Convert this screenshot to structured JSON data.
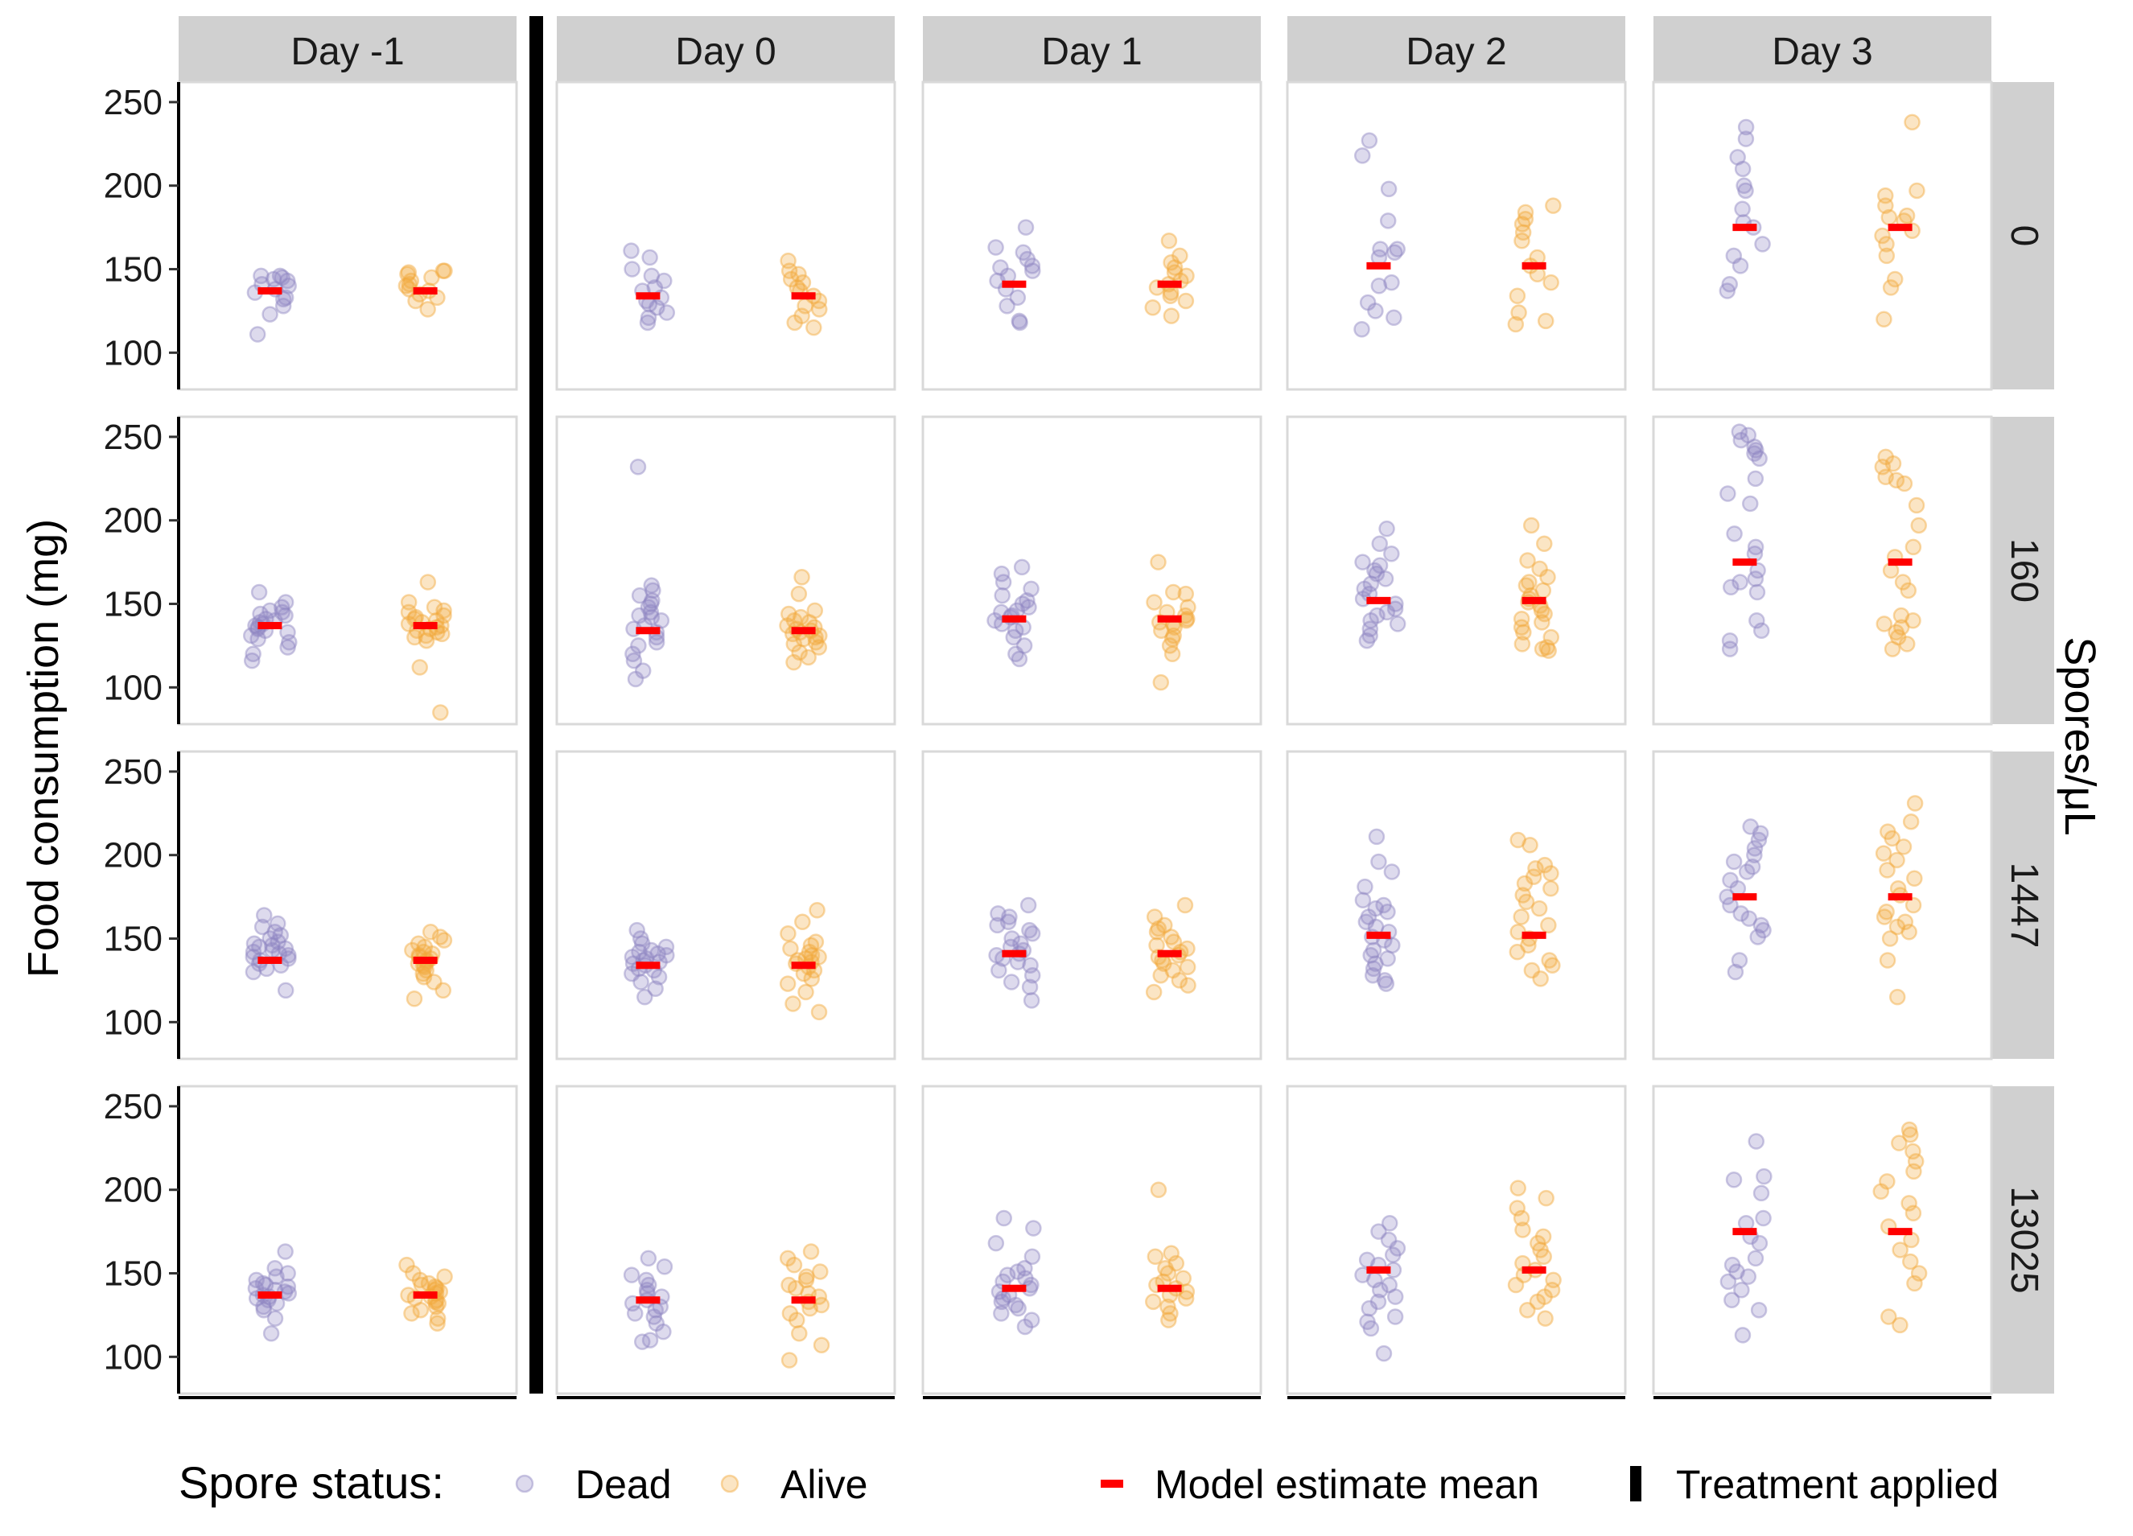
{
  "chart_data": {
    "type": "scatter",
    "facet_columns": [
      "Day -1",
      "Day 0",
      "Day 1",
      "Day 2",
      "Day 3"
    ],
    "facet_rows": [
      "0",
      "160",
      "1447",
      "13025"
    ],
    "row_strip_title": "Spores/μL",
    "ylabel": "Food consumption (mg)",
    "xlabel": "",
    "ylim": [
      78,
      262
    ],
    "yticks": [
      100,
      150,
      200,
      250
    ],
    "x_categories": [
      "Dead",
      "Alive"
    ],
    "grid": false,
    "legend": {
      "position": "bottom",
      "title": "Spore status:",
      "entries": [
        {
          "label": "Dead",
          "color": "#8E85C2"
        },
        {
          "label": "Alive",
          "color": "#F2A93B"
        }
      ],
      "mean_label": "Model estimate mean",
      "treatment_label": "Treatment applied"
    },
    "colors": {
      "Dead": "#8E85C2",
      "Alive": "#F2A93B",
      "mean": "#FF0000",
      "strip": "#D0D0D0"
    },
    "model_means": [
      [
        137,
        134,
        141,
        152,
        175
      ],
      [
        137,
        134,
        141,
        152,
        175
      ],
      [
        137,
        134,
        141,
        152,
        175
      ],
      [
        137,
        134,
        141,
        152,
        175
      ]
    ],
    "panels": [
      [
        {
          "dead": [
            111,
            123,
            128,
            132,
            133,
            136,
            138,
            140,
            141,
            143,
            144,
            145,
            146,
            146
          ],
          "alive": [
            126,
            131,
            133,
            135,
            137,
            138,
            140,
            141,
            143,
            145,
            147,
            148,
            149,
            149
          ]
        },
        {
          "dead": [
            118,
            121,
            124,
            127,
            129,
            131,
            133,
            137,
            139,
            143,
            146,
            150,
            157,
            161
          ],
          "alive": [
            115,
            118,
            122,
            126,
            128,
            131,
            134,
            137,
            139,
            142,
            144,
            147,
            149,
            155
          ]
        },
        {
          "dead": [
            118,
            119,
            128,
            133,
            138,
            143,
            146,
            149,
            151,
            152,
            156,
            160,
            163,
            175
          ],
          "alive": [
            122,
            127,
            131,
            134,
            136,
            139,
            141,
            143,
            146,
            148,
            151,
            154,
            158,
            167
          ]
        },
        {
          "dead": [
            114,
            121,
            125,
            130,
            140,
            142,
            157,
            160,
            162,
            162,
            179,
            198,
            218,
            227
          ],
          "alive": [
            117,
            119,
            124,
            134,
            142,
            147,
            152,
            157,
            167,
            172,
            177,
            180,
            184,
            188
          ]
        },
        {
          "dead": [
            137,
            141,
            152,
            158,
            165,
            175,
            178,
            186,
            197,
            200,
            210,
            217,
            228,
            235
          ],
          "alive": [
            120,
            139,
            144,
            158,
            165,
            170,
            173,
            179,
            181,
            182,
            188,
            194,
            197,
            238
          ]
        }
      ],
      [
        {
          "dead": [
            116,
            120,
            124,
            127,
            129,
            131,
            133,
            134,
            135,
            136,
            137,
            138,
            139,
            140,
            141,
            143,
            144,
            145,
            146,
            148,
            151,
            157
          ],
          "alive": [
            85,
            112,
            128,
            130,
            131,
            132,
            133,
            134,
            135,
            136,
            137,
            138,
            139,
            140,
            141,
            142,
            143,
            145,
            146,
            148,
            151,
            163
          ]
        },
        {
          "dead": [
            105,
            110,
            116,
            120,
            125,
            127,
            130,
            133,
            135,
            137,
            140,
            142,
            143,
            145,
            148,
            150,
            152,
            155,
            158,
            161,
            232
          ],
          "alive": [
            115,
            118,
            121,
            124,
            126,
            127,
            129,
            130,
            131,
            132,
            133,
            134,
            135,
            136,
            137,
            139,
            140,
            142,
            144,
            146,
            156,
            166
          ]
        },
        {
          "dead": [
            117,
            120,
            125,
            130,
            134,
            136,
            138,
            140,
            142,
            143,
            145,
            146,
            148,
            150,
            152,
            155,
            159,
            163,
            168,
            172
          ],
          "alive": [
            103,
            120,
            125,
            129,
            131,
            134,
            136,
            138,
            139,
            140,
            141,
            143,
            145,
            148,
            151,
            156,
            157,
            175
          ]
        },
        {
          "dead": [
            128,
            131,
            135,
            138,
            140,
            143,
            145,
            147,
            150,
            153,
            156,
            159,
            162,
            165,
            168,
            170,
            173,
            175,
            180,
            186,
            195
          ],
          "alive": [
            122,
            123,
            124,
            126,
            130,
            133,
            136,
            139,
            141,
            144,
            146,
            149,
            151,
            153,
            155,
            158,
            161,
            163,
            166,
            171,
            176,
            186,
            197
          ]
        },
        {
          "dead": [
            123,
            128,
            134,
            140,
            157,
            160,
            163,
            165,
            170,
            180,
            184,
            192,
            210,
            216,
            225,
            237,
            240,
            242,
            244,
            248,
            251,
            253
          ],
          "alive": [
            123,
            126,
            130,
            133,
            136,
            138,
            140,
            143,
            158,
            163,
            170,
            178,
            184,
            197,
            209,
            222,
            224,
            226,
            232,
            234,
            238
          ]
        }
      ],
      [
        {
          "dead": [
            119,
            130,
            132,
            134,
            135,
            137,
            138,
            139,
            140,
            141,
            142,
            143,
            144,
            145,
            146,
            147,
            148,
            150,
            152,
            154,
            157,
            159,
            164
          ],
          "alive": [
            114,
            119,
            124,
            127,
            129,
            131,
            133,
            134,
            135,
            136,
            137,
            138,
            139,
            140,
            141,
            142,
            143,
            145,
            147,
            149,
            151,
            154
          ]
        },
        {
          "dead": [
            115,
            120,
            124,
            127,
            129,
            131,
            132,
            134,
            135,
            136,
            137,
            138,
            139,
            140,
            141,
            142,
            143,
            145,
            147,
            150,
            155
          ],
          "alive": [
            106,
            111,
            118,
            123,
            126,
            129,
            131,
            133,
            135,
            136,
            137,
            138,
            139,
            140,
            142,
            144,
            146,
            148,
            153,
            160,
            167
          ]
        },
        {
          "dead": [
            113,
            121,
            124,
            128,
            131,
            134,
            136,
            138,
            140,
            141,
            143,
            145,
            147,
            150,
            153,
            155,
            158,
            160,
            163,
            165,
            170
          ],
          "alive": [
            118,
            122,
            125,
            128,
            131,
            133,
            135,
            137,
            139,
            140,
            142,
            144,
            146,
            148,
            151,
            154,
            156,
            158,
            163,
            170
          ]
        },
        {
          "dead": [
            123,
            125,
            128,
            132,
            135,
            138,
            140,
            143,
            146,
            149,
            151,
            154,
            157,
            160,
            163,
            166,
            168,
            170,
            173,
            181,
            190,
            196,
            211
          ],
          "alive": [
            126,
            131,
            134,
            137,
            142,
            146,
            150,
            154,
            158,
            163,
            168,
            172,
            176,
            180,
            183,
            187,
            189,
            192,
            194,
            206,
            209
          ]
        },
        {
          "dead": [
            130,
            137,
            151,
            155,
            158,
            162,
            165,
            170,
            175,
            180,
            185,
            190,
            193,
            196,
            200,
            204,
            209,
            213,
            217
          ],
          "alive": [
            115,
            137,
            150,
            154,
            157,
            160,
            163,
            166,
            170,
            176,
            180,
            186,
            191,
            197,
            201,
            205,
            210,
            214,
            220,
            231
          ]
        }
      ],
      [
        {
          "dead": [
            114,
            123,
            128,
            130,
            132,
            134,
            135,
            136,
            137,
            138,
            139,
            140,
            141,
            142,
            143,
            144,
            146,
            148,
            150,
            153,
            163
          ],
          "alive": [
            120,
            123,
            126,
            128,
            130,
            132,
            133,
            134,
            135,
            136,
            137,
            138,
            139,
            140,
            141,
            142,
            143,
            144,
            146,
            148,
            150,
            155
          ]
        },
        {
          "dead": [
            109,
            110,
            115,
            120,
            124,
            126,
            128,
            130,
            132,
            134,
            136,
            138,
            140,
            143,
            146,
            149,
            154,
            159
          ],
          "alive": [
            98,
            107,
            114,
            122,
            126,
            129,
            131,
            133,
            136,
            138,
            141,
            143,
            146,
            148,
            151,
            155,
            159,
            163
          ]
        },
        {
          "dead": [
            118,
            122,
            126,
            129,
            131,
            133,
            135,
            137,
            139,
            141,
            143,
            145,
            147,
            149,
            151,
            153,
            160,
            168,
            177,
            183
          ],
          "alive": [
            122,
            126,
            130,
            133,
            135,
            137,
            139,
            141,
            143,
            145,
            147,
            150,
            153,
            156,
            160,
            162,
            200
          ]
        },
        {
          "dead": [
            102,
            117,
            121,
            124,
            129,
            133,
            136,
            140,
            143,
            146,
            149,
            152,
            155,
            158,
            161,
            165,
            170,
            175,
            180
          ],
          "alive": [
            123,
            128,
            133,
            136,
            140,
            143,
            146,
            149,
            152,
            156,
            160,
            164,
            168,
            172,
            176,
            183,
            189,
            195,
            201
          ]
        },
        {
          "dead": [
            113,
            128,
            134,
            140,
            145,
            148,
            151,
            155,
            159,
            168,
            172,
            180,
            183,
            198,
            206,
            208,
            229
          ],
          "alive": [
            119,
            124,
            144,
            150,
            157,
            164,
            170,
            178,
            186,
            192,
            199,
            205,
            211,
            217,
            223,
            228,
            233,
            236
          ]
        }
      ]
    ]
  }
}
